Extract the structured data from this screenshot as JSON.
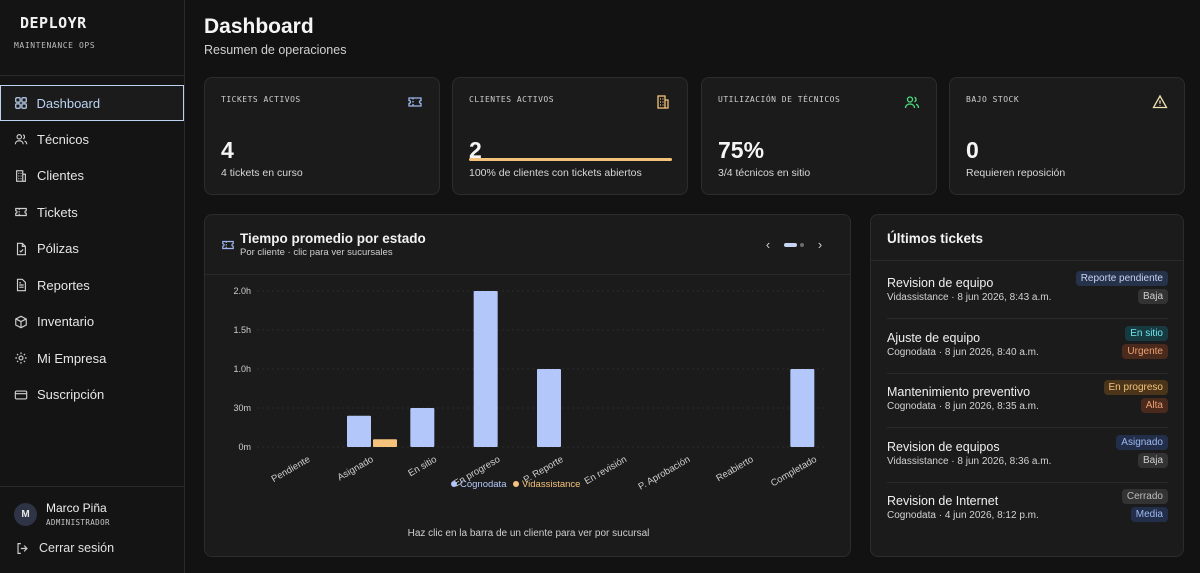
{
  "brand": {
    "name": "DEPLOYR",
    "subtitle": "MAINTENANCE OPS"
  },
  "nav": [
    {
      "label": "Dashboard",
      "icon": "grid-icon",
      "active": true
    },
    {
      "label": "Técnicos",
      "icon": "users-icon"
    },
    {
      "label": "Clientes",
      "icon": "building-icon"
    },
    {
      "label": "Tickets",
      "icon": "ticket-icon"
    },
    {
      "label": "Pólizas",
      "icon": "document-icon"
    },
    {
      "label": "Reportes",
      "icon": "report-icon"
    },
    {
      "label": "Inventario",
      "icon": "box-icon"
    },
    {
      "label": "Mi Empresa",
      "icon": "gear-icon"
    },
    {
      "label": "Suscripción",
      "icon": "credit-card-icon"
    }
  ],
  "user": {
    "initial": "M",
    "name": "Marco Piña",
    "role": "ADMINISTRADOR"
  },
  "logout": "Cerrar sesión",
  "header": {
    "title": "Dashboard",
    "subtitle": "Resumen de operaciones"
  },
  "stats": [
    {
      "label": "TICKETS ACTIVOS",
      "value": "4",
      "desc": "4 tickets en curso",
      "icon": "ticket-icon",
      "color": "#9db8f0"
    },
    {
      "label": "CLIENTES ACTIVOS",
      "value": "2",
      "desc": "100% de clientes con tickets abiertos",
      "icon": "building-icon",
      "color": "#f4c27a",
      "progress": 1.0
    },
    {
      "label": "UTILIZACIÓN DE TÉCNICOS",
      "value": "75%",
      "desc": "3/4 técnicos en sitio",
      "icon": "users-icon",
      "color": "#4ade80"
    },
    {
      "label": "BAJO STOCK",
      "value": "0",
      "desc": "Requieren reposición",
      "icon": "warning-icon",
      "color": "#f0e0b0"
    }
  ],
  "chart_panel": {
    "title": "Tiempo promedio por estado",
    "subtitle": "Por cliente · clic para ver sucursales",
    "footer": "Haz clic en la barra de un cliente para ver por sucursal",
    "prev": "‹",
    "next": "›"
  },
  "chart_data": {
    "type": "bar",
    "categories": [
      "Pendiente",
      "Asignado",
      "En sitio",
      "En progreso",
      "P. Reporte",
      "En revisión",
      "P. Aprobación",
      "Reabierto",
      "Completado"
    ],
    "series": [
      {
        "name": "Cognodata",
        "color": "#b3c7fb",
        "values": [
          0,
          0.4,
          0.5,
          2.0,
          1.0,
          0,
          0,
          0,
          1.0
        ]
      },
      {
        "name": "Vidassistance",
        "color": "#f6c37c",
        "values": [
          0,
          0.1,
          0,
          0,
          0,
          0,
          0,
          0,
          0
        ]
      }
    ],
    "yticks": [
      {
        "value": 0,
        "label": "0m"
      },
      {
        "value": 0.5,
        "label": "30m"
      },
      {
        "value": 1.0,
        "label": "1.0h"
      },
      {
        "value": 1.5,
        "label": "1.5h"
      },
      {
        "value": 2.0,
        "label": "2.0h"
      }
    ],
    "ylim": [
      0,
      2.0
    ],
    "grid": true,
    "legend": "bottom"
  },
  "tickets_panel": {
    "title": "Últimos tickets",
    "items": [
      {
        "title": "Revision de equipo",
        "meta": "Vidassistance · 8 jun 2026, 8:43 a.m.",
        "status": "Reporte pendiente",
        "status_color": "#c6d5f3",
        "status_bg": "#26314a",
        "priority": "Baja",
        "priority_color": "#cfcfcf",
        "priority_bg": "#333333"
      },
      {
        "title": "Ajuste de equipo",
        "meta": "Cognodata · 8 jun 2026, 8:40 a.m.",
        "status": "En sitio",
        "status_color": "#6ee7f0",
        "status_bg": "#163a40",
        "priority": "Urgente",
        "priority_color": "#f0a070",
        "priority_bg": "#4a2a1c"
      },
      {
        "title": "Mantenimiento preventivo",
        "meta": "Cognodata · 8 jun 2026, 8:35 a.m.",
        "status": "En progreso",
        "status_color": "#f4c27a",
        "status_bg": "#4a351a",
        "priority": "Alta",
        "priority_color": "#f0a070",
        "priority_bg": "#4a2a1c"
      },
      {
        "title": "Revision de equipos",
        "meta": "Vidassistance · 8 jun 2026, 8:36 a.m.",
        "status": "Asignado",
        "status_color": "#9db8f0",
        "status_bg": "#232f4a",
        "priority": "Baja",
        "priority_color": "#cfcfcf",
        "priority_bg": "#333333"
      },
      {
        "title": "Revision de Internet",
        "meta": "Cognodata · 4 jun 2026, 8:12 p.m.",
        "status": "Cerrado",
        "status_color": "#bdbdbd",
        "status_bg": "#333333",
        "priority": "Media",
        "priority_color": "#9db8f0",
        "priority_bg": "#232f4a"
      }
    ]
  }
}
